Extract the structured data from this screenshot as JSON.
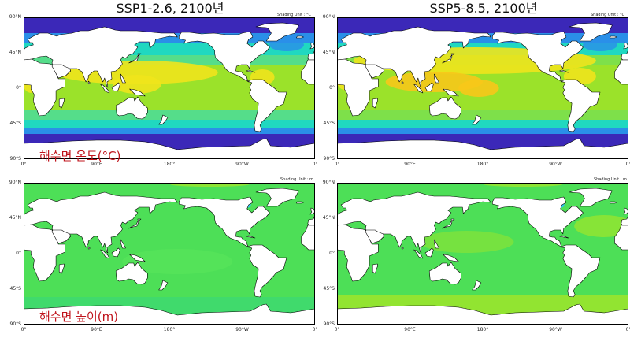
{
  "titles": {
    "left": "SSP1-2.6, 2100년",
    "right": "SSP5-8.5, 2100년"
  },
  "panels": {
    "sst": {
      "unit": "Shading Unit : °C",
      "variable_label": "해수면 온도(°C)"
    },
    "ssh": {
      "unit": "Shading Unit : m",
      "variable_label": "해수면 높이(m)"
    }
  },
  "axes": {
    "lat_ticks": [
      "90°N",
      "45°N",
      "0°",
      "45°S",
      "90°S"
    ],
    "lon_ticks": [
      "0°",
      "90°E",
      "180°",
      "90°W",
      "0°"
    ]
  },
  "colors": {
    "sst_cold": "#3b28b8",
    "sst_cool": "#2a8fe8",
    "sst_mid": "#20d8c0",
    "sst_warm": "#9be22a",
    "sst_hot_1": "#f0e41c",
    "sst_hot_2": "#f7c81a",
    "ssh_base": "#4ddf57",
    "ssh_high": "#9fe52a",
    "ssh_low": "#30c6e8",
    "land": "#ffffff",
    "coast": "#000000",
    "label_red": "#c0141c"
  }
}
